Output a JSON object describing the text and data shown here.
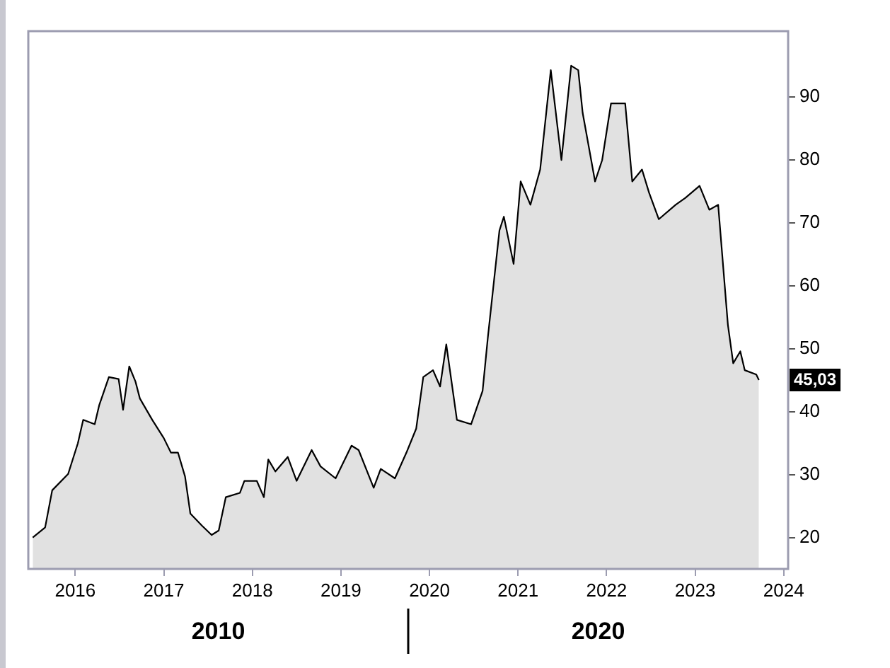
{
  "chart_data": {
    "type": "area",
    "x": [
      2015.52,
      2015.66,
      2015.74,
      2015.92,
      2016.03,
      2016.09,
      2016.22,
      2016.27,
      2016.38,
      2016.49,
      2016.54,
      2016.61,
      2016.68,
      2016.73,
      2016.87,
      2017.0,
      2017.08,
      2017.16,
      2017.24,
      2017.3,
      2017.43,
      2017.54,
      2017.62,
      2017.7,
      2017.86,
      2017.91,
      2018.05,
      2018.13,
      2018.18,
      2018.26,
      2018.4,
      2018.5,
      2018.67,
      2018.77,
      2018.94,
      2019.12,
      2019.2,
      2019.37,
      2019.45,
      2019.61,
      2019.74,
      2019.85,
      2019.93,
      2020.04,
      2020.12,
      2020.19,
      2020.31,
      2020.47,
      2020.6,
      2020.66,
      2020.79,
      2020.84,
      2020.95,
      2021.03,
      2021.14,
      2021.25,
      2021.37,
      2021.49,
      2021.6,
      2021.68,
      2021.73,
      2021.87,
      2021.95,
      2022.05,
      2022.21,
      2022.29,
      2022.4,
      2022.48,
      2022.59,
      2022.78,
      2022.89,
      2023.05,
      2023.16,
      2023.26,
      2023.37,
      2023.43,
      2023.51,
      2023.56,
      2023.69,
      2023.72
    ],
    "series": [
      {
        "color": "#000000",
        "values": [
          20,
          21.6,
          27.5,
          30.1,
          35,
          38.7,
          38,
          41,
          45.5,
          45.2,
          40.3,
          47.2,
          44.8,
          42.1,
          38.7,
          35.8,
          33.5,
          33.5,
          29.7,
          23.8,
          21.9,
          20.4,
          21.1,
          26.4,
          27.1,
          29,
          29,
          26.4,
          32.4,
          30.5,
          32.8,
          29,
          33.9,
          31.3,
          29.4,
          34.6,
          33.9,
          27.9,
          30.9,
          29.4,
          33.5,
          37.3,
          45.5,
          46.6,
          44,
          50.7,
          38.7,
          38,
          43.3,
          51.9,
          68.8,
          71,
          63.5,
          76.6,
          72.9,
          78.5,
          94.3,
          80,
          95,
          94.3,
          87.5,
          76.6,
          80,
          89,
          89,
          76.6,
          78.5,
          74.8,
          70.6,
          72.9,
          74,
          75.9,
          72.1,
          72.9,
          53.8,
          47.7,
          49.6,
          46.6,
          45.9,
          45.03
        ]
      }
    ],
    "xlim": [
      2015.47,
      2024.05
    ],
    "xticks": [
      2016,
      2017,
      2018,
      2019,
      2020,
      2021,
      2022,
      2023,
      2024
    ],
    "ylim": [
      15,
      100.5
    ],
    "yticks": [
      20,
      30,
      40,
      50,
      60,
      70,
      80,
      90
    ],
    "annotations": [
      "2010",
      "2020",
      {
        "text": "45,03",
        "y": 45.03
      }
    ],
    "legend": false
  }
}
